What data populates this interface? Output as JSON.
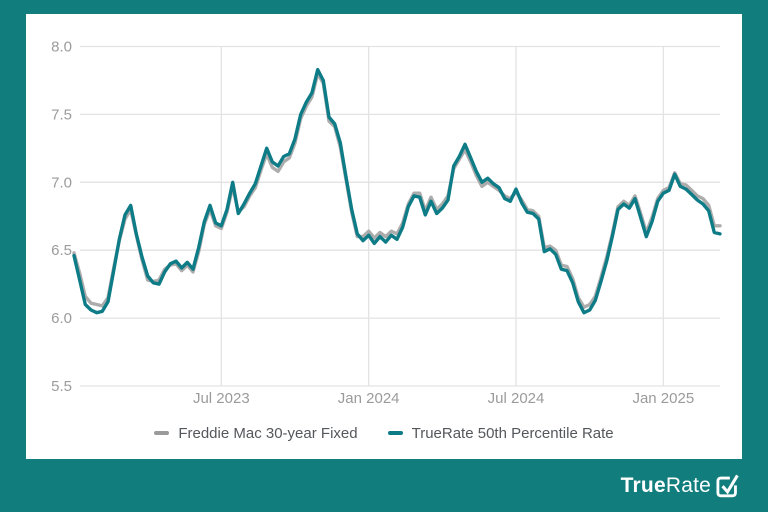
{
  "colors": {
    "background_teal": "#117D7D",
    "card_white": "#FFFFFF",
    "truerate_line": "#0E7C87",
    "freddie_line": "#ACACAC",
    "gridline": "#E3E3E3",
    "axis_text": "#9B9B9B",
    "legend_text": "#54575B",
    "legend_gray_swatch": "#9B9B9B",
    "logo_white": "#FFFFFF"
  },
  "legend": {
    "series": [
      {
        "label": "Freddie Mac 30-year Fixed",
        "color": "#9B9B9B"
      },
      {
        "label": "TrueRate 50th Percentile Rate",
        "color": "#0E7C87"
      }
    ]
  },
  "logo": {
    "bold": "True",
    "regular": "Rate",
    "icon": "checkmark-box-icon"
  },
  "chart_data": {
    "type": "line",
    "x_unit": "week",
    "ylim": [
      5.5,
      8.0
    ],
    "y_ticks": [
      {
        "label": "8.0",
        "value": 8.0
      },
      {
        "label": "7.5",
        "value": 7.5
      },
      {
        "label": "7.0",
        "value": 7.0
      },
      {
        "label": "6.5",
        "value": 6.5
      },
      {
        "label": "6.0",
        "value": 6.0
      },
      {
        "label": "5.5",
        "value": 5.5
      }
    ],
    "x_ticks": [
      {
        "label": "Jul 2023",
        "index": 26
      },
      {
        "label": "Jan 2024",
        "index": 52
      },
      {
        "label": "Jul 2024",
        "index": 78
      },
      {
        "label": "Jan 2025",
        "index": 104
      }
    ],
    "grid": true,
    "legend_position": "bottom",
    "series": [
      {
        "name": "Freddie Mac 30-year Fixed",
        "color": "#ACACAC",
        "values": [
          6.48,
          6.33,
          6.16,
          6.11,
          6.1,
          6.09,
          6.15,
          6.37,
          6.57,
          6.73,
          6.8,
          6.61,
          6.43,
          6.28,
          6.27,
          6.28,
          6.36,
          6.39,
          6.4,
          6.35,
          6.39,
          6.34,
          6.49,
          6.69,
          6.8,
          6.68,
          6.66,
          6.78,
          6.97,
          6.78,
          6.82,
          6.9,
          6.96,
          7.09,
          7.21,
          7.11,
          7.08,
          7.15,
          7.18,
          7.29,
          7.47,
          7.56,
          7.63,
          7.8,
          7.73,
          7.45,
          7.41,
          7.26,
          7.02,
          6.78,
          6.6,
          6.6,
          6.64,
          6.59,
          6.63,
          6.6,
          6.64,
          6.62,
          6.7,
          6.84,
          6.92,
          6.92,
          6.79,
          6.89,
          6.8,
          6.84,
          6.9,
          7.1,
          7.17,
          7.24,
          7.15,
          7.05,
          6.97,
          7.0,
          6.97,
          6.94,
          6.9,
          6.88,
          6.93,
          6.87,
          6.8,
          6.79,
          6.75,
          6.52,
          6.53,
          6.5,
          6.39,
          6.38,
          6.29,
          6.15,
          6.08,
          6.1,
          6.16,
          6.3,
          6.45,
          6.62,
          6.82,
          6.86,
          6.83,
          6.9,
          6.77,
          6.63,
          6.74,
          6.88,
          6.94,
          6.96,
          7.07,
          6.99,
          6.98,
          6.94,
          6.9,
          6.88,
          6.83,
          6.68,
          6.68
        ]
      },
      {
        "name": "TrueRate 50th Percentile Rate",
        "color": "#0E7C87",
        "values": [
          6.46,
          6.28,
          6.1,
          6.06,
          6.04,
          6.05,
          6.12,
          6.35,
          6.58,
          6.76,
          6.83,
          6.62,
          6.45,
          6.31,
          6.26,
          6.25,
          6.34,
          6.4,
          6.42,
          6.37,
          6.41,
          6.36,
          6.52,
          6.71,
          6.83,
          6.7,
          6.68,
          6.8,
          7.0,
          6.77,
          6.84,
          6.92,
          6.99,
          7.12,
          7.25,
          7.15,
          7.12,
          7.19,
          7.21,
          7.32,
          7.5,
          7.59,
          7.66,
          7.83,
          7.75,
          7.48,
          7.43,
          7.29,
          7.04,
          6.8,
          6.62,
          6.57,
          6.61,
          6.55,
          6.6,
          6.56,
          6.61,
          6.58,
          6.67,
          6.82,
          6.9,
          6.89,
          6.76,
          6.86,
          6.77,
          6.81,
          6.87,
          7.12,
          7.19,
          7.28,
          7.18,
          7.08,
          7.0,
          7.03,
          6.99,
          6.96,
          6.88,
          6.86,
          6.95,
          6.85,
          6.78,
          6.77,
          6.73,
          6.49,
          6.51,
          6.47,
          6.36,
          6.35,
          6.26,
          6.12,
          6.04,
          6.06,
          6.13,
          6.27,
          6.42,
          6.6,
          6.8,
          6.84,
          6.81,
          6.88,
          6.74,
          6.6,
          6.71,
          6.86,
          6.92,
          6.94,
          7.06,
          6.97,
          6.95,
          6.91,
          6.87,
          6.84,
          6.79,
          6.63,
          6.62
        ]
      }
    ]
  }
}
